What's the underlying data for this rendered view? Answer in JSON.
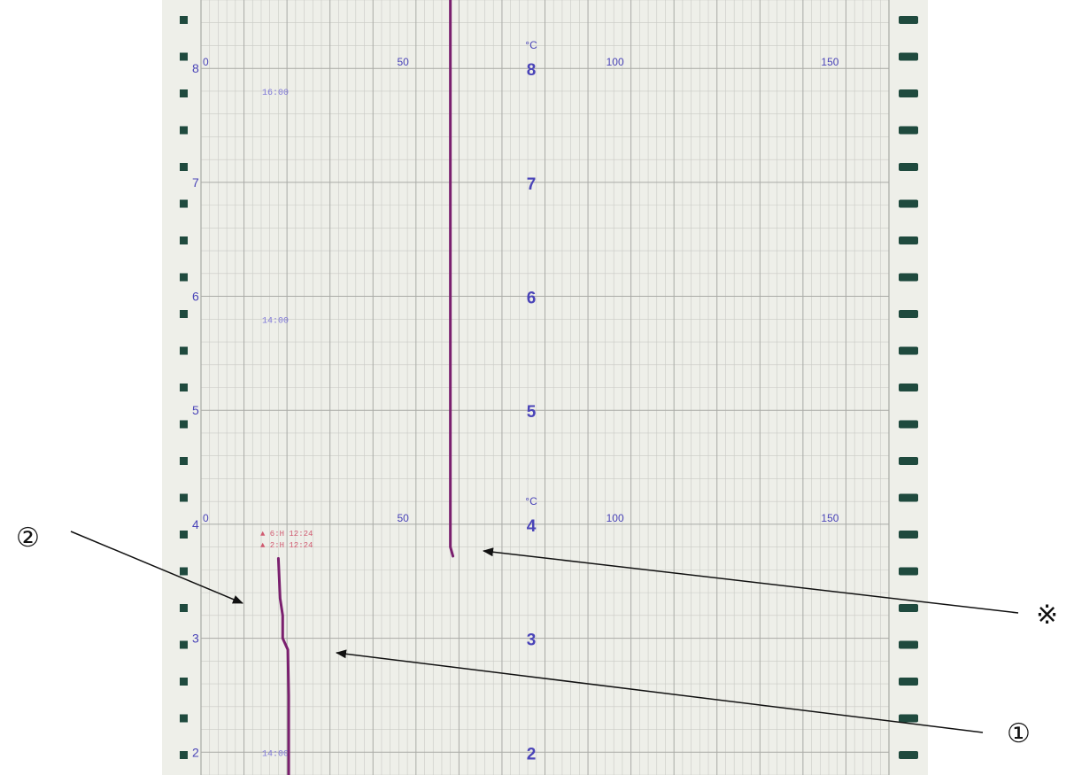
{
  "chart_data": {
    "type": "line",
    "title": "",
    "xlabel": "",
    "ylabel": "",
    "unit_label": "°C",
    "x_axis": {
      "ticks": [
        0,
        50,
        100,
        150
      ],
      "range": [
        0,
        160
      ],
      "grid_minor_step": 2
    },
    "y_axis": {
      "ticks": [
        2,
        3,
        4,
        5,
        6,
        7,
        8
      ],
      "range": [
        1.8,
        8.6
      ]
    },
    "scale_label_rows": [
      8,
      4
    ],
    "row_tick_labels": [
      "2",
      "3",
      "4",
      "5",
      "6",
      "7",
      "8"
    ],
    "time_marks": [
      {
        "y": 7.8,
        "label": "16:00"
      },
      {
        "y": 5.8,
        "label": "14:00"
      },
      {
        "y": 2.0,
        "label": "14:00"
      }
    ],
    "event_notes": [
      {
        "y": 3.93,
        "label": "▲ 6:H 12:24"
      },
      {
        "y": 3.83,
        "label": "▲ 2:H 12:24"
      }
    ],
    "series": [
      {
        "color": "#7a1f6e",
        "x": [
          58,
          58,
          58.6
        ],
        "y": [
          8.6,
          3.8,
          3.72
        ]
      },
      {
        "color": "#7a1f6e",
        "x": [
          18,
          18.4,
          19,
          19,
          20.2,
          20.4,
          20.4
        ],
        "y": [
          3.7,
          3.35,
          3.2,
          3.0,
          2.9,
          2.5,
          1.8
        ]
      }
    ]
  },
  "callouts": {
    "one": "①",
    "two": "②",
    "mark": "※"
  },
  "colors": {
    "paper": "#eeefe9",
    "grid_major": "#a9aaa6",
    "grid_minor": "#c9cac5",
    "scale_text": "#4a44b8",
    "time_text": "#7f78d8",
    "event_text": "#d05a70",
    "trace": "#7a1f6e",
    "perforation": "#1f4a3e"
  }
}
